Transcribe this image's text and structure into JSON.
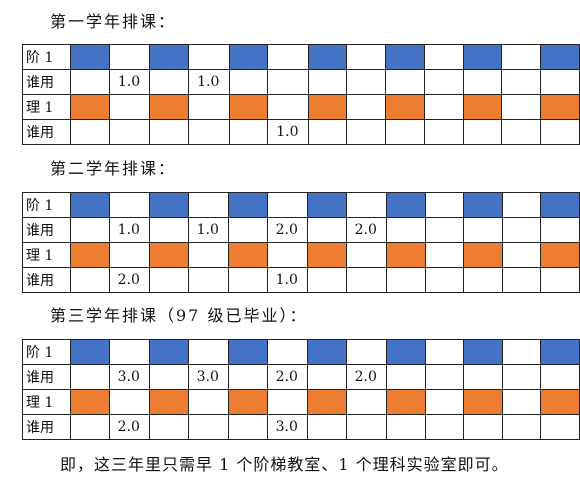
{
  "sections": [
    {
      "heading": "第一学年排课：",
      "rows": [
        {
          "label": "阶 1",
          "color": "#4472c4",
          "filled": [
            1,
            3,
            5,
            7,
            9,
            11,
            13
          ],
          "values": {}
        },
        {
          "label": "谁用",
          "color": "",
          "filled": [],
          "values": {
            "1": "1.0",
            "3": "1.0"
          }
        },
        {
          "label": "理 1",
          "color": "#ed7d31",
          "filled": [
            1,
            3,
            5,
            7,
            9,
            11,
            13
          ],
          "values": {}
        },
        {
          "label": "谁用",
          "color": "",
          "filled": [],
          "values": {
            "5": "1.0"
          }
        }
      ]
    },
    {
      "heading": "第二学年排课：",
      "rows": [
        {
          "label": "阶 1",
          "color": "#4472c4",
          "filled": [
            1,
            3,
            5,
            7,
            9,
            11,
            13
          ],
          "values": {}
        },
        {
          "label": "谁用",
          "color": "",
          "filled": [],
          "values": {
            "1": "1.0",
            "3": "1.0",
            "5": "2.0",
            "7": "2.0"
          }
        },
        {
          "label": "理 1",
          "color": "#ed7d31",
          "filled": [
            1,
            3,
            5,
            7,
            9,
            11,
            13
          ],
          "values": {}
        },
        {
          "label": "谁用",
          "color": "",
          "filled": [],
          "values": {
            "1": "2.0",
            "5": "1.0"
          }
        }
      ]
    },
    {
      "heading": "第三学年排课（97 级已毕业）：",
      "rows": [
        {
          "label": "阶 1",
          "color": "#4472c4",
          "filled": [
            1,
            3,
            5,
            7,
            9,
            11,
            13
          ],
          "values": {}
        },
        {
          "label": "谁用",
          "color": "",
          "filled": [],
          "values": {
            "1": "3.0",
            "3": "3.0",
            "5": "2.0",
            "7": "2.0"
          }
        },
        {
          "label": "理 1",
          "color": "#ed7d31",
          "filled": [
            1,
            3,
            5,
            7,
            9,
            11,
            13
          ],
          "values": {}
        },
        {
          "label": "谁用",
          "color": "",
          "filled": [],
          "values": {
            "1": "2.0",
            "5": "3.0"
          }
        }
      ]
    }
  ],
  "footer": "即，这三年里只需早 1 个阶梯教室、1 个理科实验室即可。"
}
